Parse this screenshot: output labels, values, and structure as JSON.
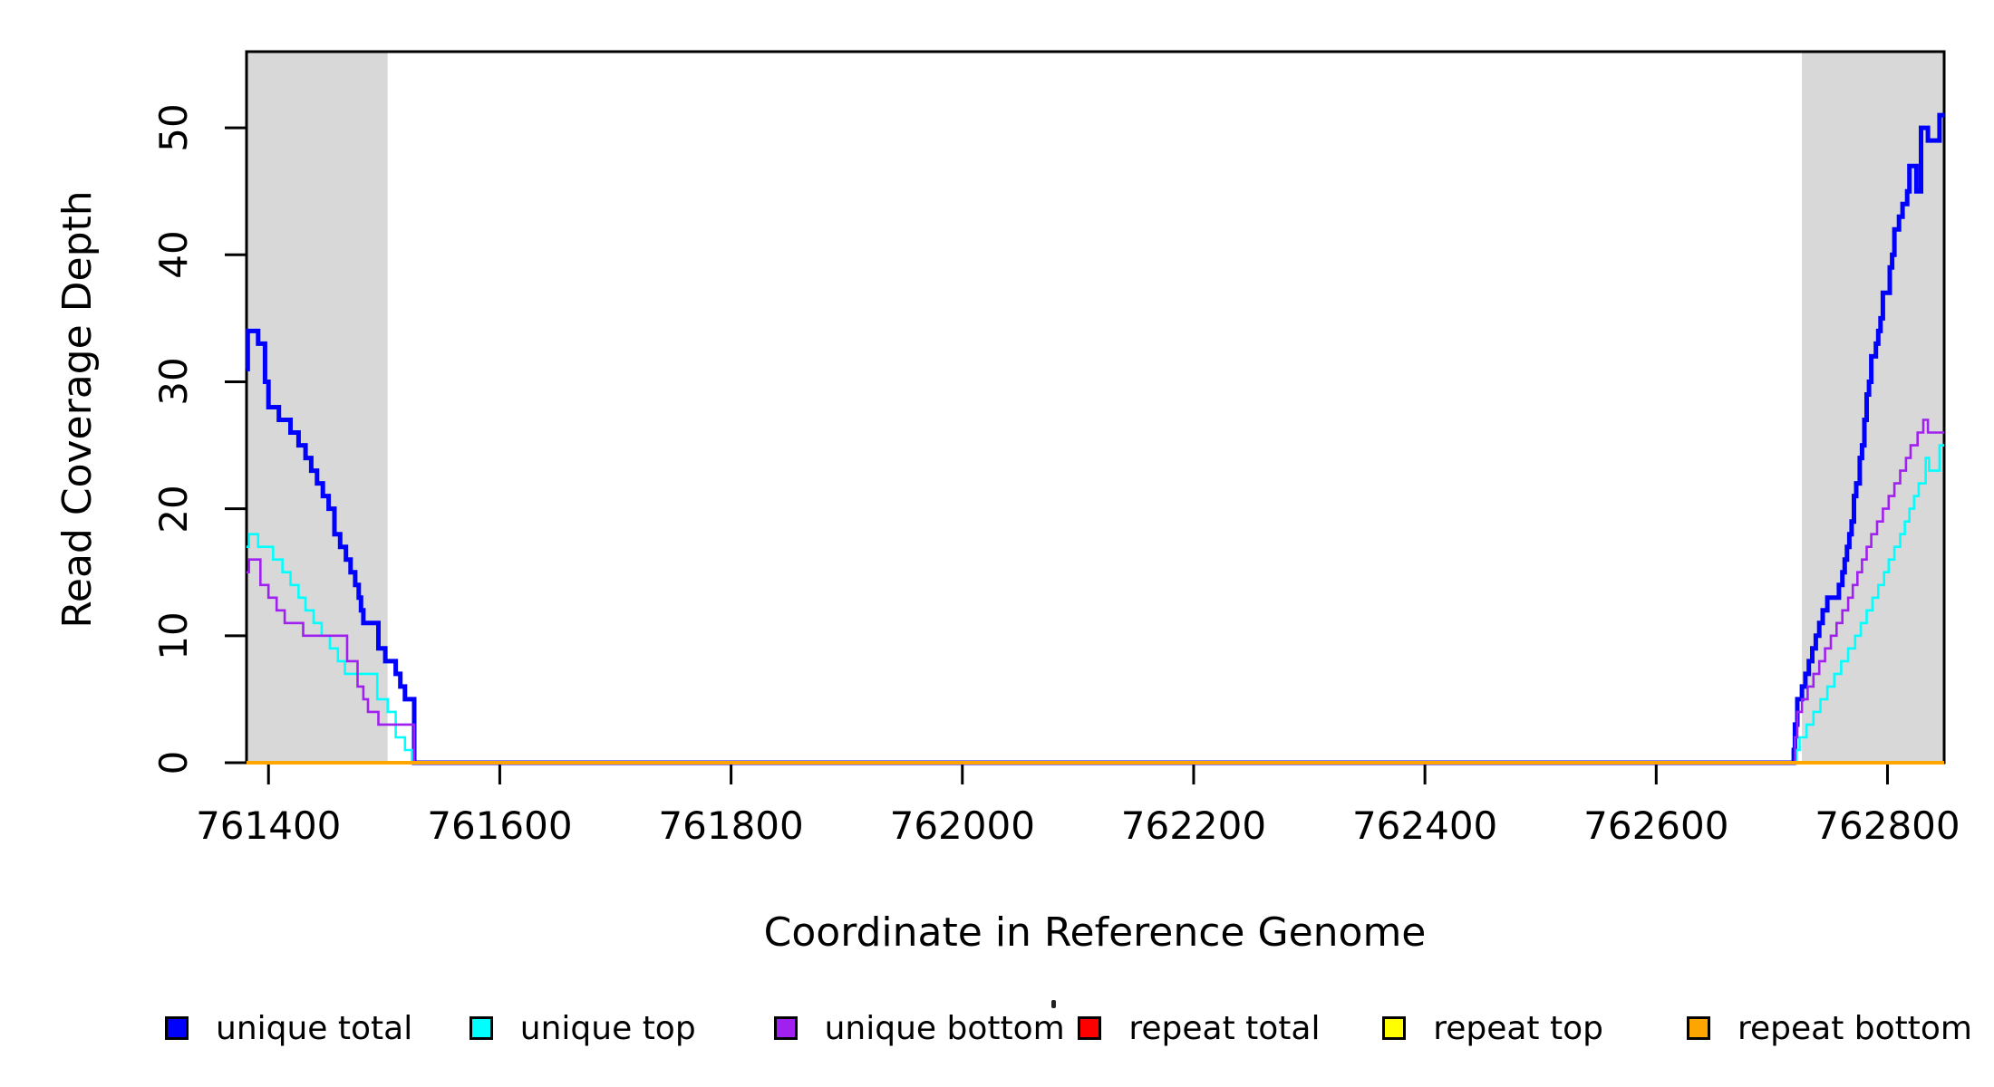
{
  "chart_data": {
    "type": "line",
    "subtype": "step-coverage",
    "xlabel": "Coordinate in Reference Genome",
    "ylabel": "Read Coverage Depth",
    "xlim": [
      761381,
      762849
    ],
    "ylim": [
      0,
      56
    ],
    "x_ticks": [
      761400,
      761600,
      761800,
      762000,
      762200,
      762400,
      762600,
      762800
    ],
    "y_ticks": [
      0,
      10,
      20,
      30,
      40,
      50
    ],
    "grid": false,
    "shade_color": "#d8d8d8",
    "shaded_regions": [
      {
        "x0": 761381,
        "x1": 761503
      },
      {
        "x0": 762726,
        "x1": 762849
      }
    ],
    "series": [
      {
        "name": "unique total",
        "color": "#0000ff",
        "line_width": 5,
        "segments": [
          [
            [
              761381,
              31
            ],
            [
              761382,
              34
            ],
            [
              761391,
              33
            ],
            [
              761397,
              30
            ],
            [
              761400,
              28
            ],
            [
              761409,
              27
            ],
            [
              761419,
              26
            ],
            [
              761426,
              25
            ],
            [
              761432,
              24
            ],
            [
              761437,
              23
            ],
            [
              761442,
              22
            ],
            [
              761447,
              21
            ],
            [
              761452,
              20
            ],
            [
              761457,
              18
            ],
            [
              761462,
              17
            ],
            [
              761467,
              16
            ],
            [
              761471,
              15
            ],
            [
              761475,
              14
            ],
            [
              761478,
              13
            ],
            [
              761480,
              12
            ],
            [
              761482,
              11
            ],
            [
              761495,
              9
            ],
            [
              761501,
              8
            ],
            [
              761510,
              7
            ],
            [
              761514,
              6
            ],
            [
              761518,
              5
            ],
            [
              761526,
              0
            ],
            [
              762719,
              1
            ],
            [
              762720,
              3
            ],
            [
              762722,
              5
            ],
            [
              762726,
              6
            ],
            [
              762729,
              7
            ],
            [
              762732,
              8
            ],
            [
              762735,
              9
            ],
            [
              762738,
              10
            ],
            [
              762741,
              11
            ],
            [
              762744,
              12
            ],
            [
              762748,
              13
            ],
            [
              762758,
              14
            ],
            [
              762761,
              15
            ],
            [
              762763,
              16
            ],
            [
              762765,
              17
            ],
            [
              762767,
              18
            ],
            [
              762769,
              19
            ],
            [
              762771,
              21
            ],
            [
              762773,
              22
            ],
            [
              762776,
              24
            ],
            [
              762778,
              25
            ],
            [
              762780,
              27
            ],
            [
              762782,
              29
            ],
            [
              762784,
              30
            ],
            [
              762786,
              32
            ],
            [
              762790,
              33
            ],
            [
              762792,
              34
            ],
            [
              762794,
              35
            ],
            [
              762796,
              37
            ],
            [
              762802,
              39
            ],
            [
              762804,
              40
            ],
            [
              762806,
              42
            ],
            [
              762810,
              43
            ],
            [
              762813,
              44
            ],
            [
              762817,
              45
            ],
            [
              762819,
              47
            ],
            [
              762825,
              45
            ],
            [
              762829,
              50
            ],
            [
              762835,
              49
            ],
            [
              762845,
              51
            ]
          ]
        ]
      },
      {
        "name": "unique top",
        "color": "#00ffff",
        "line_width": 2.6,
        "segments": [
          [
            [
              761381,
              17
            ],
            [
              761383,
              18
            ],
            [
              761391,
              17
            ],
            [
              761404,
              16
            ],
            [
              761412,
              15
            ],
            [
              761419,
              14
            ],
            [
              761426,
              13
            ],
            [
              761432,
              12
            ],
            [
              761439,
              11
            ],
            [
              761446,
              10
            ],
            [
              761453,
              9
            ],
            [
              761460,
              8
            ],
            [
              761466,
              7
            ],
            [
              761494,
              5
            ],
            [
              761503,
              4
            ],
            [
              761510,
              2
            ],
            [
              761518,
              1
            ],
            [
              761524,
              0
            ],
            [
              762721,
              1
            ],
            [
              762724,
              2
            ],
            [
              762730,
              3
            ],
            [
              762736,
              4
            ],
            [
              762742,
              5
            ],
            [
              762748,
              6
            ],
            [
              762754,
              7
            ],
            [
              762760,
              8
            ],
            [
              762766,
              9
            ],
            [
              762772,
              10
            ],
            [
              762777,
              11
            ],
            [
              762782,
              12
            ],
            [
              762787,
              13
            ],
            [
              762792,
              14
            ],
            [
              762797,
              15
            ],
            [
              762801,
              16
            ],
            [
              762806,
              17
            ],
            [
              762811,
              18
            ],
            [
              762815,
              19
            ],
            [
              762819,
              20
            ],
            [
              762823,
              21
            ],
            [
              762827,
              22
            ],
            [
              762833,
              24
            ],
            [
              762836,
              23
            ],
            [
              762845,
              25
            ]
          ]
        ]
      },
      {
        "name": "unique bottom",
        "color": "#a020f0",
        "line_width": 2.6,
        "segments": [
          [
            [
              761381,
              15
            ],
            [
              761383,
              16
            ],
            [
              761393,
              14
            ],
            [
              761400,
              13
            ],
            [
              761407,
              12
            ],
            [
              761414,
              11
            ],
            [
              761430,
              10
            ],
            [
              761468,
              8
            ],
            [
              761477,
              6
            ],
            [
              761482,
              5
            ],
            [
              761486,
              4
            ],
            [
              761495,
              3
            ],
            [
              761526,
              0
            ],
            [
              762720,
              2
            ],
            [
              762722,
              4
            ],
            [
              762726,
              5
            ],
            [
              762731,
              6
            ],
            [
              762736,
              7
            ],
            [
              762741,
              8
            ],
            [
              762746,
              9
            ],
            [
              762751,
              10
            ],
            [
              762756,
              11
            ],
            [
              762761,
              12
            ],
            [
              762766,
              13
            ],
            [
              762770,
              14
            ],
            [
              762774,
              15
            ],
            [
              762778,
              16
            ],
            [
              762782,
              17
            ],
            [
              762786,
              18
            ],
            [
              762791,
              19
            ],
            [
              762796,
              20
            ],
            [
              762801,
              21
            ],
            [
              762806,
              22
            ],
            [
              762811,
              23
            ],
            [
              762816,
              24
            ],
            [
              762820,
              25
            ],
            [
              762826,
              26
            ],
            [
              762831,
              27
            ],
            [
              762835,
              26
            ]
          ]
        ]
      },
      {
        "name": "repeat total",
        "color": "#ff0000",
        "line_width": 2.6,
        "segments": [
          [
            [
              761381,
              0
            ],
            [
              761526,
              0
            ]
          ],
          [
            [
              762719,
              0
            ],
            [
              762849,
              0
            ]
          ]
        ]
      },
      {
        "name": "repeat top",
        "color": "#ffff00",
        "line_width": 2.6,
        "segments": [
          [
            [
              761381,
              0
            ],
            [
              761526,
              0
            ]
          ],
          [
            [
              762719,
              0
            ],
            [
              762849,
              0
            ]
          ]
        ]
      },
      {
        "name": "repeat bottom",
        "color": "#ffa500",
        "line_width": 4,
        "segments": [
          [
            [
              761381,
              0
            ],
            [
              761526,
              0
            ]
          ],
          [
            [
              762719,
              0
            ],
            [
              762849,
              0
            ]
          ]
        ]
      }
    ]
  },
  "legend": {
    "items": [
      {
        "label": "unique total",
        "color": "#0000ff"
      },
      {
        "label": "unique top",
        "color": "#00ffff"
      },
      {
        "label": "unique bottom",
        "color": "#a020f0"
      },
      {
        "label": "repeat total",
        "color": "#ff0000"
      },
      {
        "label": "repeat top",
        "color": "#ffff00"
      },
      {
        "label": "repeat bottom",
        "color": "#ffa500"
      }
    ]
  }
}
